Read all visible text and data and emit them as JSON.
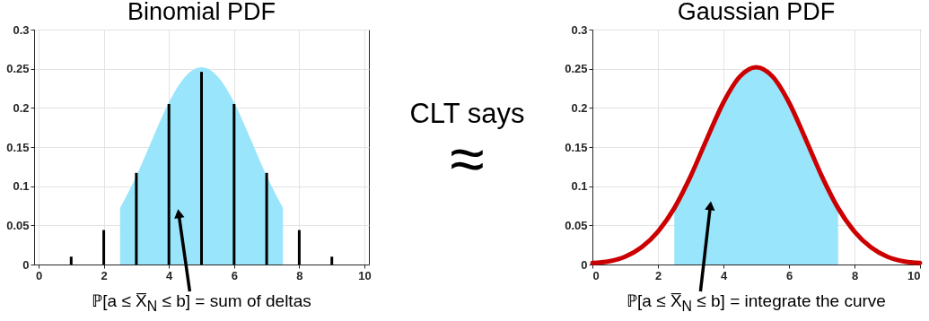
{
  "chart_data": [
    {
      "type": "bar",
      "title": "Binomial PDF",
      "xlim": [
        0,
        10
      ],
      "ylim": [
        0,
        0.3
      ],
      "xticks": [
        0,
        2,
        4,
        6,
        8,
        10
      ],
      "yticks": [
        0,
        0.05,
        0.1,
        0.15,
        0.2,
        0.25,
        0.3
      ],
      "grid": true,
      "series": [
        {
          "type": "area",
          "color": "#99e5fb",
          "x": [
            2.5,
            3,
            3.5,
            4,
            4.5,
            5,
            5.5,
            6,
            6.5,
            7,
            7.5
          ],
          "values": [
            0.072,
            0.113,
            0.161,
            0.207,
            0.24,
            0.252,
            0.24,
            0.207,
            0.161,
            0.113,
            0.072
          ]
        },
        {
          "type": "bar",
          "color": "#000000",
          "x": [
            1,
            2,
            3,
            4,
            5,
            6,
            7,
            8,
            9
          ],
          "values": [
            0.01,
            0.044,
            0.117,
            0.205,
            0.246,
            0.205,
            0.117,
            0.044,
            0.01
          ]
        }
      ],
      "annotations": [
        {
          "text": "ℙ[a ≤ X̅$_{N}$ ≤ b] = sum of deltas",
          "x": 4.3,
          "y": 0.065
        }
      ]
    },
    {
      "type": "other",
      "title": "CLT says",
      "annotations": [
        "≈"
      ]
    },
    {
      "type": "line",
      "title": "Gaussian PDF",
      "xlim": [
        0,
        10
      ],
      "ylim": [
        0,
        0.3
      ],
      "xticks": [
        0,
        2,
        4,
        6,
        8,
        10
      ],
      "yticks": [
        0,
        0.05,
        0.1,
        0.15,
        0.2,
        0.25,
        0.3
      ],
      "grid": true,
      "series": [
        {
          "type": "area",
          "color": "#99e5fb",
          "x": [
            2.5,
            3,
            3.5,
            4,
            4.5,
            5,
            5.5,
            6,
            6.5,
            7,
            7.5
          ],
          "values": [
            0.072,
            0.113,
            0.161,
            0.207,
            0.24,
            0.252,
            0.24,
            0.207,
            0.161,
            0.113,
            0.072
          ]
        },
        {
          "type": "line",
          "color": "#cc0000",
          "x": [
            0,
            0.5,
            1,
            1.5,
            2,
            2.5,
            3,
            3.5,
            4,
            4.5,
            5,
            5.5,
            6,
            6.5,
            7,
            7.5,
            8,
            8.5,
            9,
            9.5,
            10
          ],
          "values": [
            0.002,
            0.004,
            0.01,
            0.022,
            0.042,
            0.072,
            0.113,
            0.161,
            0.207,
            0.24,
            0.252,
            0.24,
            0.207,
            0.161,
            0.113,
            0.072,
            0.042,
            0.022,
            0.01,
            0.004,
            0.002
          ]
        }
      ],
      "annotations": [
        {
          "text": "ℙ[a ≤ X̅$_{N}$ ≤ b] = integrate the curve",
          "x": 3.6,
          "y": 0.075
        }
      ]
    }
  ]
}
